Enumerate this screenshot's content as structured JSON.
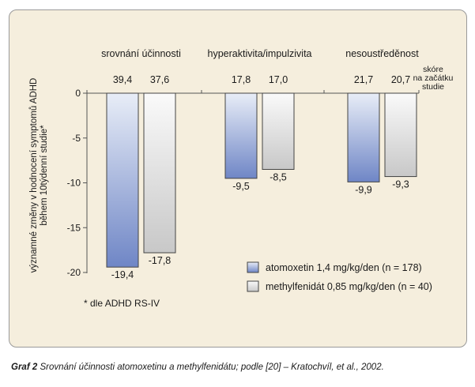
{
  "chart_data": {
    "type": "bar",
    "ylabel_lines": [
      "významné změny v hodnocení symptomů ADHD",
      "během 10týdenní studie*"
    ],
    "ylim": [
      -20,
      0
    ],
    "yticks": [
      0,
      -5,
      -10,
      -15,
      -20
    ],
    "ytick_labels": [
      "0",
      "-5",
      "-10",
      "-15",
      "-20"
    ],
    "categories": [
      "srovnání účinnosti",
      "hyperaktivita/impulzivita",
      "nesoustředěnost"
    ],
    "series": [
      {
        "name": "atomoxetin 1,4 mg/kg/den (n = 178)",
        "color_top": "#e8edf7",
        "color_bottom": "#6f86c6",
        "values": [
          -19.4,
          -9.5,
          -9.9
        ],
        "value_labels": [
          "-19,4",
          "-9,5",
          "-9,9"
        ],
        "baseline_labels": [
          "39,4",
          "17,8",
          "21,7"
        ]
      },
      {
        "name": "methylfenidát 0,85 mg/kg/den (n = 40)",
        "color_top": "#fafafa",
        "color_bottom": "#c8c8c8",
        "values": [
          -17.8,
          -8.5,
          -9.3
        ],
        "value_labels": [
          "-17,8",
          "-8,5",
          "-9,3"
        ],
        "baseline_labels": [
          "37,6",
          "17,0",
          "20,7"
        ]
      }
    ],
    "baseline_caption_lines": [
      "skóre",
      "na začátku",
      "studie"
    ],
    "legend_position": "bottom-right",
    "footnote": "* dle ADHD RS-IV",
    "grid": false
  },
  "caption": {
    "lead": "Graf 2",
    "text": " Srovnání účinnosti atomoxetinu a methylfenidátu; podle [20] – Kratochvíl, et al., 2002."
  }
}
